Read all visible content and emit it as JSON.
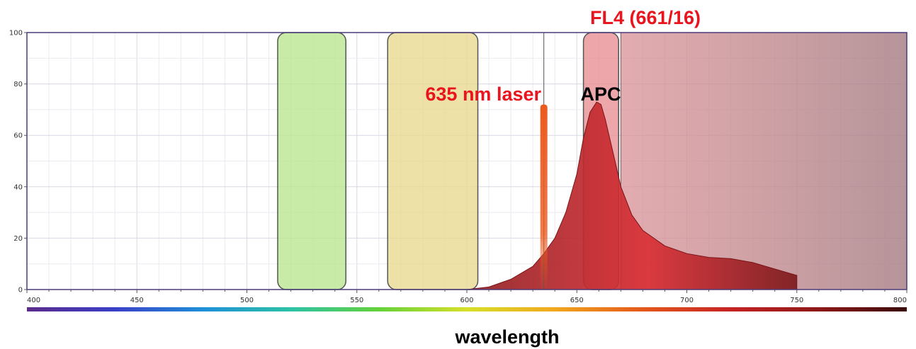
{
  "chart_data": {
    "type": "area",
    "xlabel": "wavelength",
    "ylabel": "",
    "xlim": [
      400,
      800
    ],
    "ylim": [
      0,
      100
    ],
    "x_ticks": [
      400,
      450,
      500,
      550,
      600,
      650,
      700,
      750,
      800
    ],
    "y_ticks": [
      0,
      20,
      40,
      60,
      80,
      100
    ],
    "grid": true,
    "filters": [
      {
        "range": [
          514,
          545
        ],
        "color": "#b8e68f"
      },
      {
        "range": [
          564,
          605
        ],
        "color": "#e8d88e"
      },
      {
        "range": [
          653,
          669
        ],
        "color": "#e88e92"
      }
    ],
    "long_pass": {
      "from": 670,
      "to": 800,
      "color": "#c27f85"
    },
    "laser": {
      "wavelength": 635,
      "label": "635 nm laser",
      "height": 72,
      "color": "#ec5a1e"
    },
    "emission": {
      "name": "APC",
      "color": "#c0282c",
      "x": [
        600,
        610,
        620,
        630,
        635,
        640,
        645,
        650,
        653,
        656,
        659,
        661,
        663,
        666,
        670,
        675,
        680,
        690,
        700,
        710,
        720,
        730,
        740,
        750
      ],
      "y": [
        0,
        1,
        4,
        9,
        14,
        20,
        30,
        45,
        59,
        69,
        73,
        72,
        66,
        55,
        40,
        29,
        23,
        17,
        14,
        12.5,
        12,
        10.5,
        8,
        5.5
      ]
    },
    "annotations": {
      "filter_label": "FL4 (661/16)",
      "laser_label": "635 nm laser",
      "dye_label": "APC"
    }
  },
  "colors": {
    "annotation_red": "#e8141e",
    "annotation_black": "#000000"
  },
  "spectrum_bar": {
    "stops": [
      "#5b2b8c",
      "#3a3fc8",
      "#1f8fd8",
      "#2cc2a6",
      "#64d13a",
      "#d6e029",
      "#f2a71d",
      "#e4581b",
      "#c62323",
      "#8e1818",
      "#3a0a0a"
    ]
  }
}
